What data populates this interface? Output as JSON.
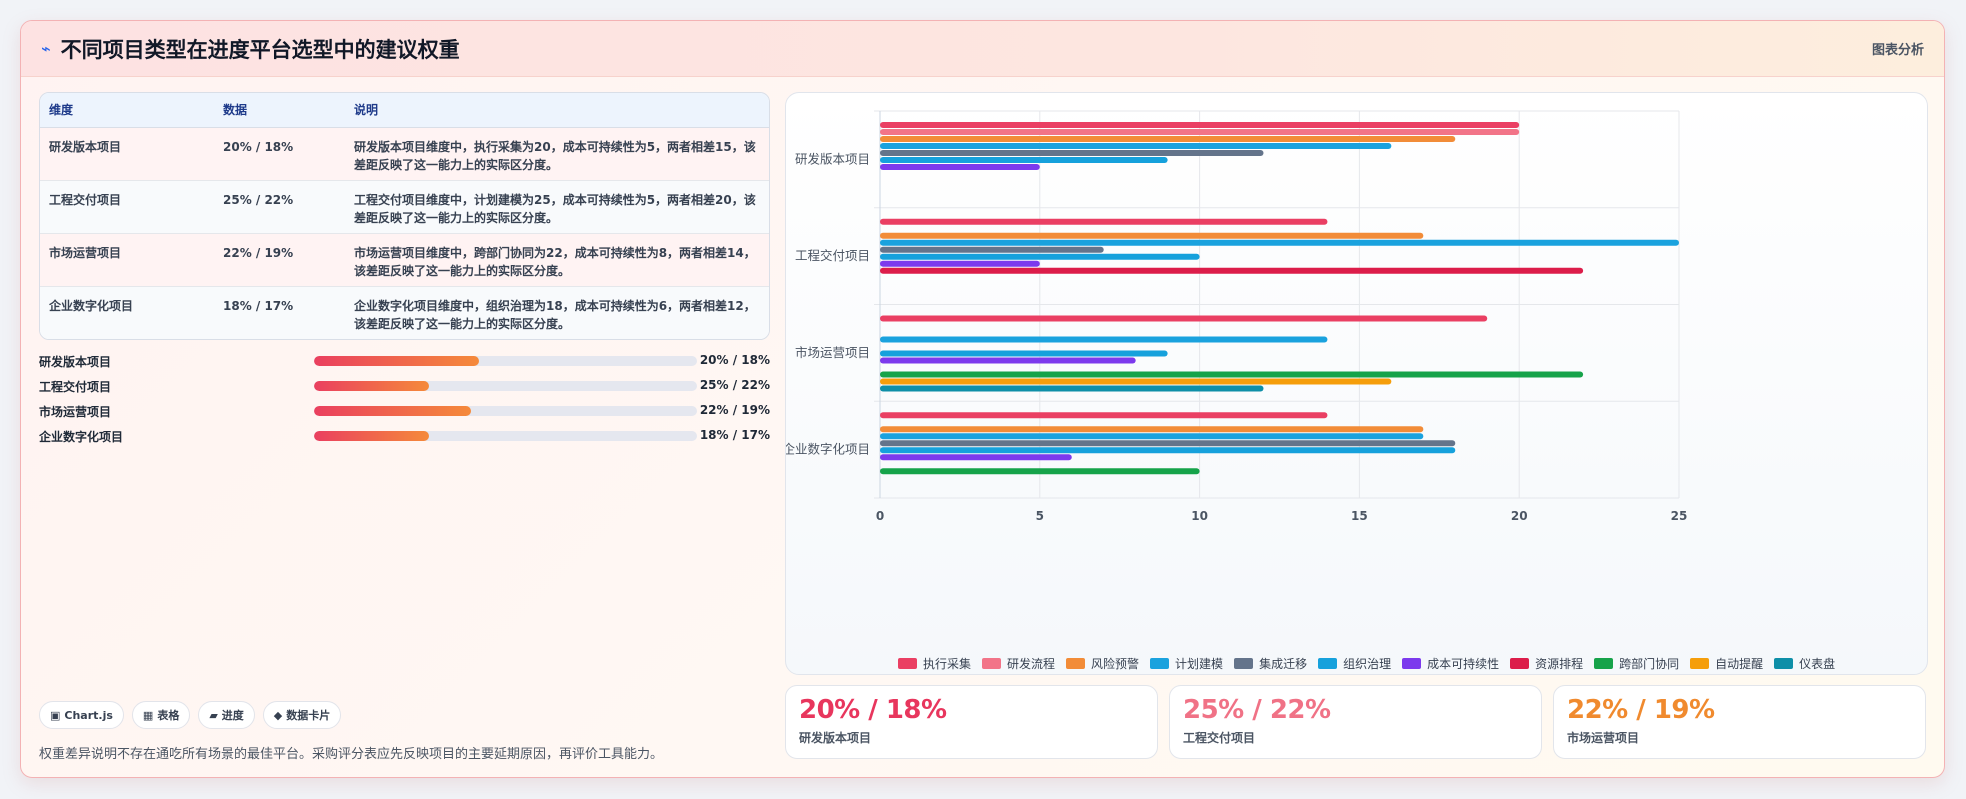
{
  "header": {
    "title": "不同项目类型在进度平台选型中的建议权重",
    "tag": "图表分析",
    "logo_icon": "lightning-icon"
  },
  "table": {
    "headers": [
      "维度",
      "数据",
      "说明"
    ],
    "rows": [
      {
        "dim": "研发版本项目",
        "data": "20% / 18%",
        "desc": "研发版本项目维度中，执行采集为20，成本可持续性为5，两者相差15，该差距反映了这一能力上的实际区分度。"
      },
      {
        "dim": "工程交付项目",
        "data": "25% / 22%",
        "desc": "工程交付项目维度中，计划建模为25，成本可持续性为5，两者相差20，该差距反映了这一能力上的实际区分度。"
      },
      {
        "dim": "市场运营项目",
        "data": "22% / 19%",
        "desc": "市场运营项目维度中，跨部门协同为22，成本可持续性为8，两者相差14，该差距反映了这一能力上的实际区分度。"
      },
      {
        "dim": "企业数字化项目",
        "data": "18% / 17%",
        "desc": "企业数字化项目维度中，组织治理为18，成本可持续性为6，两者相差12，该差距反映了这一能力上的实际区分度。"
      }
    ]
  },
  "progress": [
    {
      "label": "研发版本项目",
      "value": "20% / 18%",
      "fill": 0.43
    },
    {
      "label": "工程交付项目",
      "value": "25% / 22%",
      "fill": 0.3
    },
    {
      "label": "市场运营项目",
      "value": "22% / 19%",
      "fill": 0.41
    },
    {
      "label": "企业数字化项目",
      "value": "18% / 17%",
      "fill": 0.3
    }
  ],
  "chips": [
    {
      "icon": "▣",
      "label": "Chart.js"
    },
    {
      "icon": "▦",
      "label": "表格"
    },
    {
      "icon": "▰",
      "label": "进度"
    },
    {
      "icon": "◆",
      "label": "数据卡片"
    }
  ],
  "note": "权重差异说明不存在通吃所有场景的最佳平台。采购评分表应先反映项目的主要延期原因，再评价工具能力。",
  "kpis": [
    {
      "value": "20% / 18%",
      "label": "研发版本项目",
      "color": "#e8365d"
    },
    {
      "value": "25% / 22%",
      "label": "工程交付项目",
      "color": "#f07286"
    },
    {
      "value": "22% / 19%",
      "label": "市场运营项目",
      "color": "#f08a2e"
    }
  ],
  "chart_data": {
    "type": "bar",
    "orientation": "horizontal",
    "categories": [
      "研发版本项目",
      "工程交付项目",
      "市场运营项目",
      "企业数字化项目"
    ],
    "xlim": [
      0,
      25
    ],
    "xticks": [
      0,
      5,
      10,
      15,
      20,
      25
    ],
    "grid": true,
    "legend_position": "bottom",
    "series": [
      {
        "name": "执行采集",
        "color": "#ea3f63",
        "values": [
          20,
          14,
          19,
          14
        ]
      },
      {
        "name": "研发流程",
        "color": "#f27488",
        "values": [
          20,
          null,
          null,
          null
        ]
      },
      {
        "name": "风险预警",
        "color": "#f28c38",
        "values": [
          18,
          17,
          null,
          17
        ]
      },
      {
        "name": "计划建模",
        "color": "#1aa2de",
        "values": [
          16,
          25,
          14,
          17
        ]
      },
      {
        "name": "集成迁移",
        "color": "#64748b",
        "values": [
          12,
          7,
          null,
          18
        ]
      },
      {
        "name": "组织治理",
        "color": "#16a1dc",
        "values": [
          9,
          10,
          9,
          18
        ]
      },
      {
        "name": "成本可持续性",
        "color": "#7c3aed",
        "values": [
          5,
          5,
          8,
          6
        ]
      },
      {
        "name": "资源排程",
        "color": "#dc1d4a",
        "values": [
          null,
          22,
          null,
          null
        ]
      },
      {
        "name": "跨部门协同",
        "color": "#16a34a",
        "values": [
          null,
          null,
          22,
          10
        ]
      },
      {
        "name": "自动提醒",
        "color": "#f59e0b",
        "values": [
          null,
          null,
          16,
          null
        ]
      },
      {
        "name": "仪表盘",
        "color": "#0e8fa8",
        "values": [
          null,
          null,
          12,
          null
        ]
      }
    ]
  }
}
